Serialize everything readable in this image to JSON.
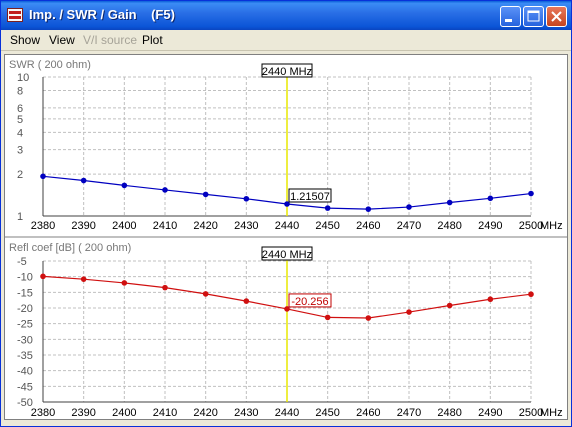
{
  "window": {
    "title": "Imp. / SWR / Gain    (F5)",
    "buttons": {
      "minimize": "minimize-icon",
      "maximize": "maximize-icon",
      "close": "close-icon"
    }
  },
  "menu": {
    "items": [
      "Show",
      "View",
      "V/I source",
      "Plot"
    ],
    "disabled": [
      false,
      false,
      true,
      false
    ]
  },
  "colors": {
    "swr_series": "#0000c0",
    "refl_series": "#d01010",
    "marker_line": "#e8e800",
    "grid": "#c0c0c0"
  },
  "chart_data": [
    {
      "type": "line",
      "title": "SWR ( 200 ohm)",
      "xlabel": "MHz",
      "ylabel": "",
      "y_scale": "log",
      "ylim": [
        1,
        10
      ],
      "y_ticks": [
        1,
        2,
        3,
        4,
        5,
        6,
        8,
        10
      ],
      "x_ticks": [
        2380,
        2390,
        2400,
        2410,
        2420,
        2430,
        2440,
        2450,
        2460,
        2470,
        2480,
        2490,
        2500
      ],
      "x": [
        2380,
        2390,
        2400,
        2410,
        2420,
        2430,
        2440,
        2450,
        2460,
        2470,
        2480,
        2490,
        2500
      ],
      "values": [
        1.93,
        1.8,
        1.66,
        1.54,
        1.43,
        1.33,
        1.22,
        1.14,
        1.12,
        1.16,
        1.25,
        1.34,
        1.45
      ],
      "marker": {
        "x_label": "2440 MHz",
        "value_label": "1.21507"
      }
    },
    {
      "type": "line",
      "title": "Refl coef [dB] ( 200 ohm)",
      "xlabel": "MHz",
      "ylabel": "",
      "ylim": [
        -50,
        -5
      ],
      "y_ticks": [
        -5,
        -10,
        -15,
        -20,
        -25,
        -30,
        -35,
        -40,
        -45,
        -50
      ],
      "x_ticks": [
        2380,
        2390,
        2400,
        2410,
        2420,
        2430,
        2440,
        2450,
        2460,
        2470,
        2480,
        2490,
        2500
      ],
      "x": [
        2380,
        2390,
        2400,
        2410,
        2420,
        2430,
        2440,
        2450,
        2460,
        2470,
        2480,
        2490,
        2500
      ],
      "values": [
        -9.9,
        -10.8,
        -12.0,
        -13.5,
        -15.5,
        -17.8,
        -20.3,
        -23.0,
        -23.2,
        -21.3,
        -19.2,
        -17.2,
        -15.6
      ],
      "marker": {
        "x_label": "2440 MHz",
        "value_label": "-20.256"
      }
    }
  ]
}
